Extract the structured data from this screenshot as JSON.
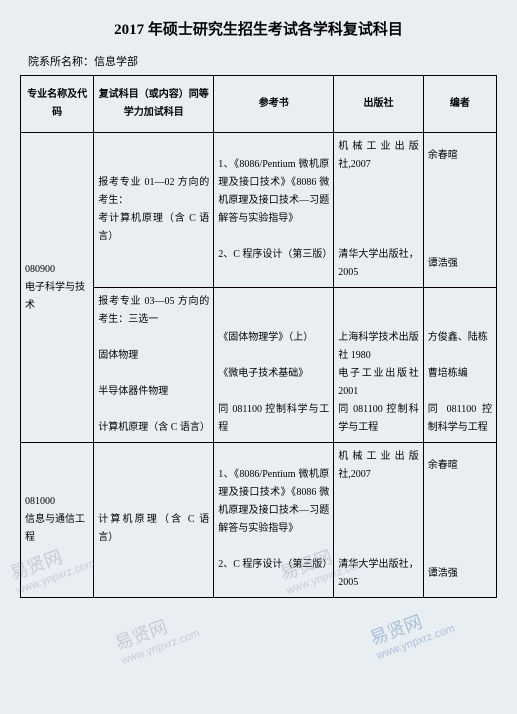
{
  "title": "2017 年硕士研究生招生考试各学科复试科目",
  "dept_label": "院系所名称：",
  "dept_name": "信息学部",
  "headers": {
    "major": "专业名称及代码",
    "subject": "复试科目（或内容）同等学力加试科目",
    "book": "参考书",
    "publisher": "出版社",
    "editor": "编者"
  },
  "rows": [
    {
      "major": "080900\n电子科学与技术",
      "major_rowspan": 2,
      "subject": "报考专业 01—02 方向的考生：\n考计算机原理（含 C 语言）",
      "book": "1、《8086/Pentium 微机原理及接口技术》《8086 微机原理及接口技术—习题解答与实验指导》\n\n2、C 程序设计（第三版）",
      "publisher": "机械工业出版社,2007\n\n\n\n\n清华大学出版社，2005",
      "editor": "余春暄\n\n\n\n\n\n谭浩强"
    },
    {
      "subject": "报考专业 03—05 方向的考生：三选一\n\n固体物理\n\n半导体器件物理\n\n计算机原理（含 C 语言）",
      "book": "\n\n《固体物理学》（上）\n\n《微电子技术基础》\n\n同 081100 控制科学与工程",
      "publisher": "\n\n上海科学技术出版社 1980\n电子工业出版社2001\n同 081100 控制科学与工程",
      "editor": "\n\n方俊鑫、陆栋\n\n曹培栋编\n\n同 081100 控制科学与工程"
    },
    {
      "major": "081000\n信息与通信工程",
      "subject": "\n\n\n计算机原理（含 C 语言）\n\n\n",
      "book": "1、《8086/Pentium 微机原理及接口技术》《8086 微机原理及接口技术—习题解答与实验指导》\n\n2、C 程序设计（第三版）",
      "publisher": "机械工业出版社,2007\n\n\n\n\n清华大学出版社，2005",
      "editor": "余春暄\n\n\n\n\n\n谭浩强"
    }
  ],
  "watermarks": {
    "cn": "易贤网",
    "url": "www.ynpxrz.com"
  },
  "colors": {
    "background": "#e9eef2",
    "border": "#000000",
    "text": "#000000"
  }
}
